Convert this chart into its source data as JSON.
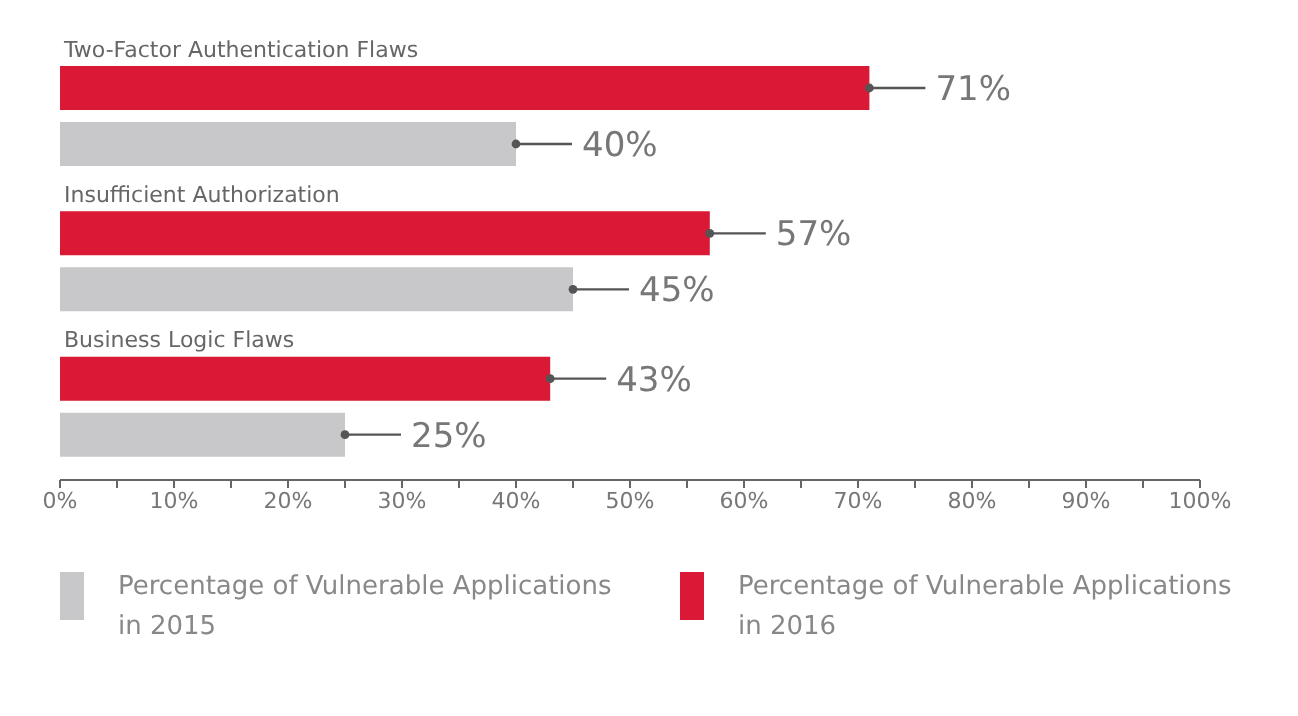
{
  "chart_data": {
    "type": "bar",
    "orientation": "horizontal",
    "categories": [
      "Two-Factor Authentication Flaws",
      "Insufficient Authorization",
      "Business Logic Flaws"
    ],
    "series": [
      {
        "name": "Percentage of Vulnerable Applications in 2015",
        "color": "#c8c8ca",
        "values": [
          40,
          45,
          25
        ],
        "value_labels": [
          "40%",
          "45%",
          "25%"
        ]
      },
      {
        "name": "Percentage of Vulnerable Applications in 2016",
        "color": "#d91935",
        "values": [
          71,
          57,
          43
        ],
        "value_labels": [
          "71%",
          "57%",
          "43%"
        ]
      }
    ],
    "xlim": [
      0,
      100
    ],
    "xticks": [
      {
        "value": 0,
        "label": "0%"
      },
      {
        "value": 5,
        "label": null
      },
      {
        "value": 10,
        "label": "10%"
      },
      {
        "value": 15,
        "label": null
      },
      {
        "value": 20,
        "label": "20%"
      },
      {
        "value": 25,
        "label": null
      },
      {
        "value": 30,
        "label": "30%"
      },
      {
        "value": 35,
        "label": null
      },
      {
        "value": 40,
        "label": "40%"
      },
      {
        "value": 45,
        "label": null
      },
      {
        "value": 50,
        "label": "50%"
      },
      {
        "value": 55,
        "label": null
      },
      {
        "value": 60,
        "label": "60%"
      },
      {
        "value": 65,
        "label": null
      },
      {
        "value": 70,
        "label": "70%"
      },
      {
        "value": 75,
        "label": null
      },
      {
        "value": 80,
        "label": "80%"
      },
      {
        "value": 85,
        "label": null
      },
      {
        "value": 90,
        "label": "90%"
      },
      {
        "value": 95,
        "label": null
      },
      {
        "value": 100,
        "label": "100%"
      }
    ],
    "grid": false,
    "legend": "bottom"
  }
}
